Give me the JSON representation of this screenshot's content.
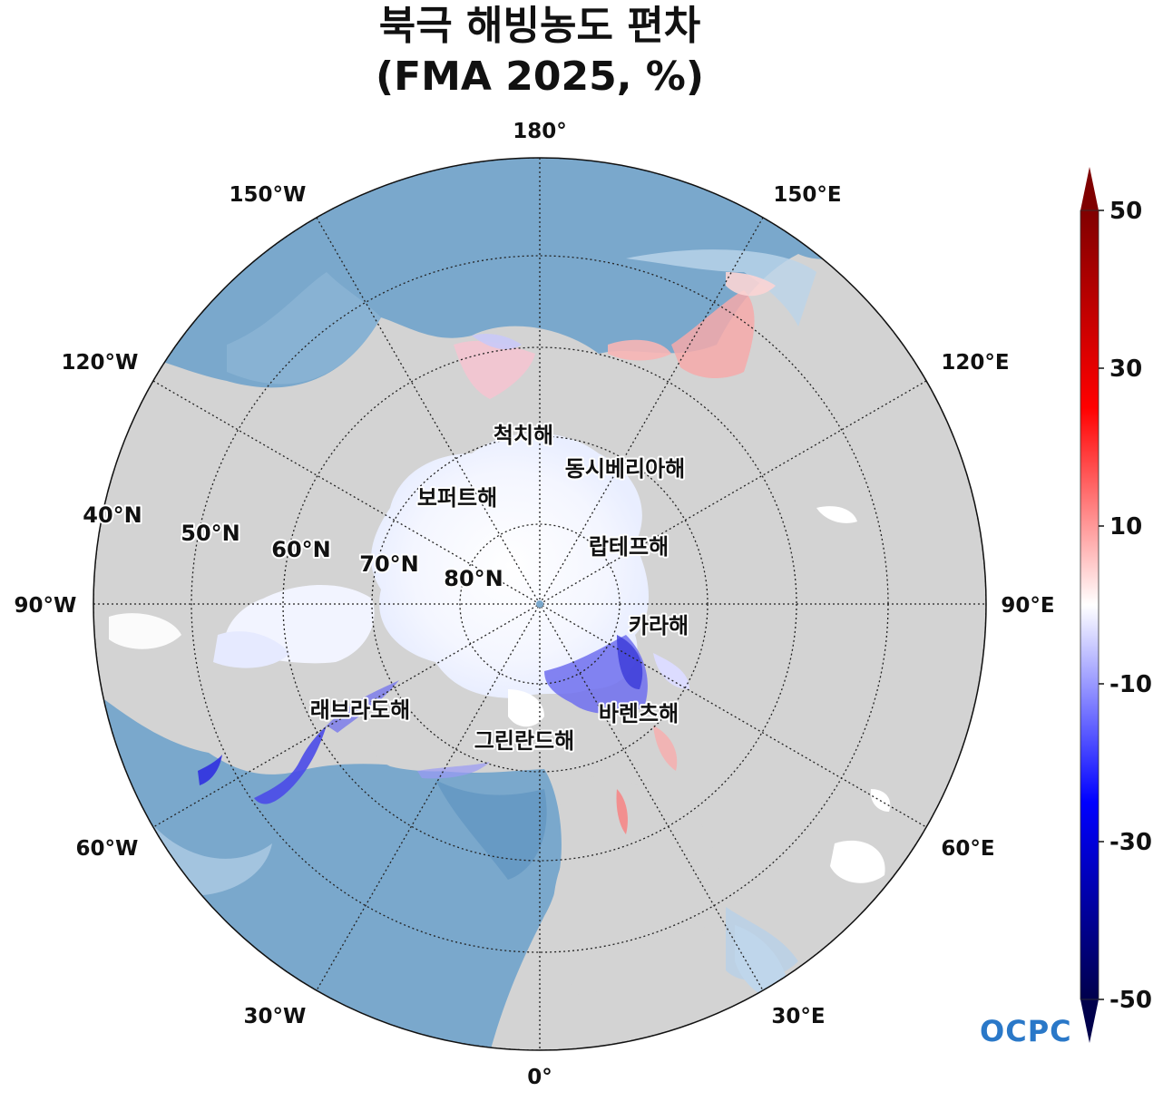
{
  "title": {
    "line1": "북극 해빙농도 편차",
    "line2": "(FMA 2025, %)"
  },
  "map": {
    "projection": "north-polar-stereographic",
    "longitude_labels": {
      "lon_180": "180°",
      "lon_150E": "150°E",
      "lon_120E": "120°E",
      "lon_90E": "90°E",
      "lon_60E": "60°E",
      "lon_30E": "30°E",
      "lon_0": "0°",
      "lon_30W": "30°W",
      "lon_60W": "60°W",
      "lon_90W": "90°W",
      "lon_120W": "120°W",
      "lon_150W": "150°W"
    },
    "latitude_labels": {
      "lat_40": "40°N",
      "lat_50": "50°N",
      "lat_60": "60°N",
      "lat_70": "70°N",
      "lat_80": "80°N"
    },
    "sea_labels": {
      "chukchi": "척치해",
      "east_siberian": "동시베리아해",
      "beaufort": "보퍼트해",
      "laptev": "랍테프해",
      "kara": "카라해",
      "barents": "바렌츠해",
      "greenland": "그린란드해",
      "labrador": "래브라도해"
    },
    "colors": {
      "land": "#d3d3d3",
      "ocean": "#7aa8cc",
      "ice_neutral": "#ffffff",
      "positive_anomaly": "#f08080",
      "negative_anomaly": "#4040e0"
    }
  },
  "colorbar": {
    "ticks": [
      "50",
      "30",
      "10",
      "-10",
      "-30",
      "-50"
    ],
    "range": [
      -50,
      50
    ],
    "extend": "both",
    "colormap": "seismic"
  },
  "logo": {
    "text": "OCPC"
  }
}
